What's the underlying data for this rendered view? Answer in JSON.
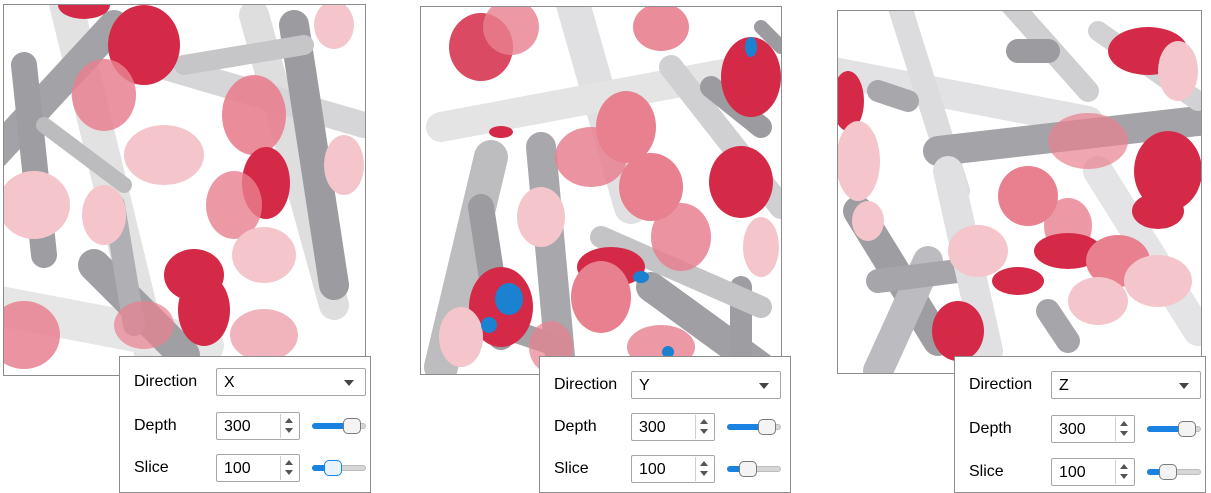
{
  "panels": [
    {
      "id": "x",
      "direction_label": "Direction",
      "direction_value": "X",
      "depth_label": "Depth",
      "depth_value": "300",
      "depth_level": 0.85,
      "slice_label": "Slice",
      "slice_value": "100",
      "slice_level": 0.33,
      "slice_focused": true
    },
    {
      "id": "y",
      "direction_label": "Direction",
      "direction_value": "Y",
      "depth_label": "Depth",
      "depth_value": "300",
      "depth_level": 0.85,
      "slice_label": "Slice",
      "slice_value": "100",
      "slice_level": 0.33,
      "slice_focused": false
    },
    {
      "id": "z",
      "direction_label": "Direction",
      "direction_value": "Z",
      "depth_label": "Depth",
      "depth_value": "300",
      "depth_level": 0.85,
      "slice_label": "Slice",
      "slice_value": "100",
      "slice_level": 0.33,
      "slice_focused": false
    }
  ],
  "colors": {
    "fiber_light": "#e2e2e2",
    "fiber_mid": "#c4c4c6",
    "fiber_dark": "#9c9ca0",
    "disc_light": "#f4c6cc",
    "disc_mid": "#e8808f",
    "disc_dark": "#d42a48",
    "marker_blue": "#1a82d0",
    "slider_accent": "#1a82e0"
  }
}
